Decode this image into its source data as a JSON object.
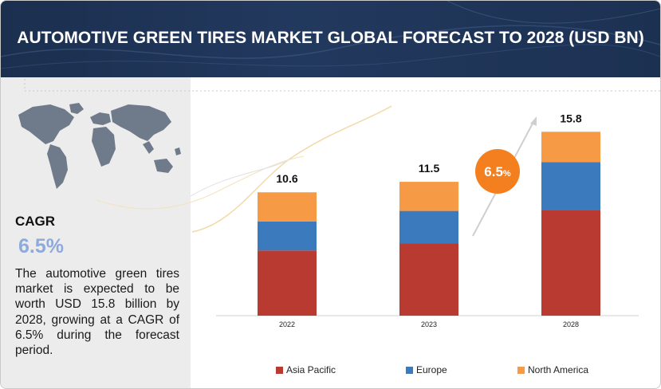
{
  "header": {
    "title": "AUTOMOTIVE GREEN TIRES MARKET GLOBAL FORECAST TO 2028 (USD BN)"
  },
  "left_panel": {
    "cagr_label": "CAGR",
    "cagr_value": "6.5%",
    "description": "The automotive green tires market is expected to be worth USD 15.8 billion by 2028, growing at a CAGR of 6.5% during the forecast period."
  },
  "colors": {
    "asia_pacific": "#b83a30",
    "europe": "#3b7bbd",
    "north_america": "#f79a45",
    "cagr_badge": "#f47f1f"
  },
  "chart_data": {
    "type": "bar",
    "stacked": true,
    "title": "AUTOMOTIVE GREEN TIRES MARKET GLOBAL FORECAST TO 2028 (USD BN)",
    "categories": [
      "2022",
      "2023",
      "2028"
    ],
    "totals": [
      "10.6",
      "11.5",
      "15.8"
    ],
    "series": [
      {
        "name": "Asia Pacific",
        "color": "#b83a30",
        "values": [
          5.6,
          6.2,
          9.1
        ]
      },
      {
        "name": "Europe",
        "color": "#3b7bbd",
        "values": [
          2.5,
          2.8,
          4.1
        ]
      },
      {
        "name": "North America",
        "color": "#f79a45",
        "values": [
          2.5,
          2.5,
          2.6
        ]
      }
    ],
    "ylim": [
      0,
      16
    ],
    "grid": false,
    "legend": "bottom",
    "annotation": {
      "label": "6.5",
      "unit": "%"
    }
  }
}
